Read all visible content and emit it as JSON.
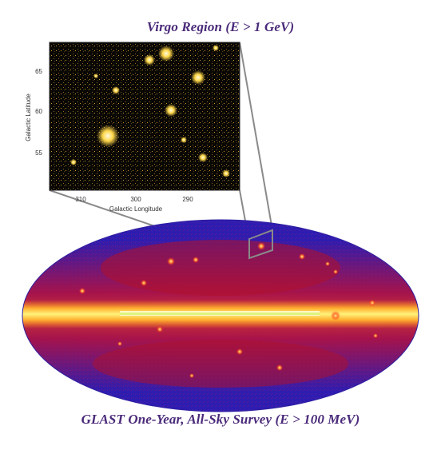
{
  "captions": {
    "inset_title": "Virgo Region (E > 1 GeV)",
    "allsky_title": "GLAST One-Year, All-Sky Survey (E > 100 MeV)"
  },
  "inset": {
    "ylabel": "Galactic Latitude",
    "xlabel": "Galactic Longitude",
    "yticks": [
      "65",
      "60",
      "55"
    ],
    "xticks": [
      "310",
      "300",
      "290"
    ]
  },
  "colors": {
    "caption": "#4a2a7a",
    "sky_background": "#3a1aa8",
    "sky_red": "#c8102e",
    "galactic_plane": "#ffe65a",
    "inset_background": "#0a0805",
    "inset_source": "#ffd84a"
  }
}
